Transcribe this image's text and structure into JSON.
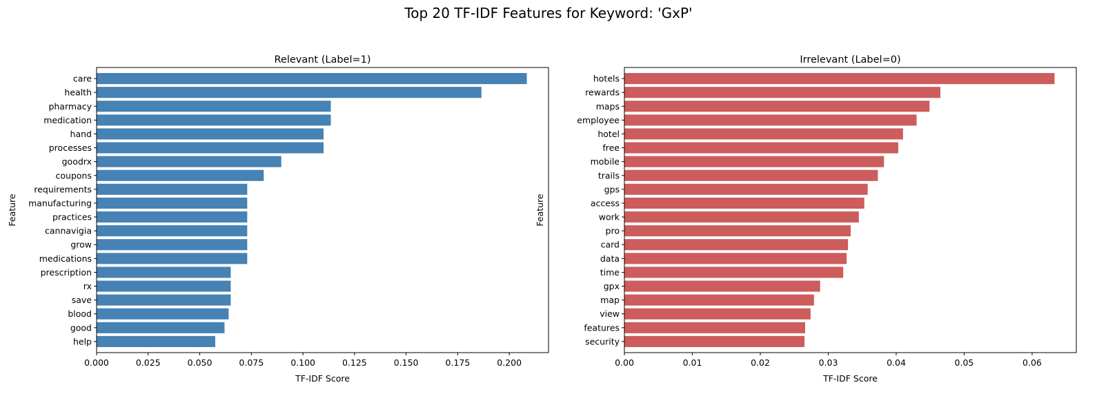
{
  "figure": {
    "suptitle": "Top 20 TF-IDF Features for Keyword: 'GxP'"
  },
  "chart_data": [
    {
      "type": "bar",
      "orientation": "horizontal",
      "title": "Relevant (Label=1)",
      "xlabel": "TF-IDF Score",
      "ylabel": "Feature",
      "color": "#4682b4",
      "xlim": [
        0,
        0.219
      ],
      "xticks": [
        0.0,
        0.025,
        0.05,
        0.075,
        0.1,
        0.125,
        0.15,
        0.175,
        0.2
      ],
      "xtick_labels": [
        "0.000",
        "0.025",
        "0.050",
        "0.075",
        "0.100",
        "0.125",
        "0.150",
        "0.175",
        "0.200"
      ],
      "grid": false,
      "categories": [
        "care",
        "health",
        "pharmacy",
        "medication",
        "hand",
        "processes",
        "goodrx",
        "coupons",
        "requirements",
        "manufacturing",
        "practices",
        "cannavigia",
        "grow",
        "medications",
        "prescription",
        "rx",
        "save",
        "blood",
        "good",
        "help"
      ],
      "values": [
        0.2085,
        0.1865,
        0.1135,
        0.1135,
        0.11,
        0.11,
        0.0895,
        0.081,
        0.073,
        0.073,
        0.073,
        0.073,
        0.073,
        0.073,
        0.065,
        0.065,
        0.065,
        0.064,
        0.062,
        0.0575
      ]
    },
    {
      "type": "bar",
      "orientation": "horizontal",
      "title": "Irrelevant (Label=0)",
      "xlabel": "TF-IDF Score",
      "ylabel": "Feature",
      "color": "#cd5c5c",
      "xlim": [
        0,
        0.0665
      ],
      "xticks": [
        0.0,
        0.01,
        0.02,
        0.03,
        0.04,
        0.05,
        0.06
      ],
      "xtick_labels": [
        "0.00",
        "0.01",
        "0.02",
        "0.03",
        "0.04",
        "0.05",
        "0.06"
      ],
      "grid": false,
      "categories": [
        "hotels",
        "rewards",
        "maps",
        "employee",
        "hotel",
        "free",
        "mobile",
        "trails",
        "gps",
        "access",
        "work",
        "pro",
        "card",
        "data",
        "time",
        "gpx",
        "map",
        "view",
        "features",
        "security"
      ],
      "values": [
        0.0633,
        0.0465,
        0.0449,
        0.043,
        0.041,
        0.0403,
        0.0382,
        0.0373,
        0.0358,
        0.0353,
        0.0345,
        0.0333,
        0.0329,
        0.0327,
        0.0322,
        0.0288,
        0.0279,
        0.0274,
        0.0266,
        0.0265
      ]
    }
  ]
}
